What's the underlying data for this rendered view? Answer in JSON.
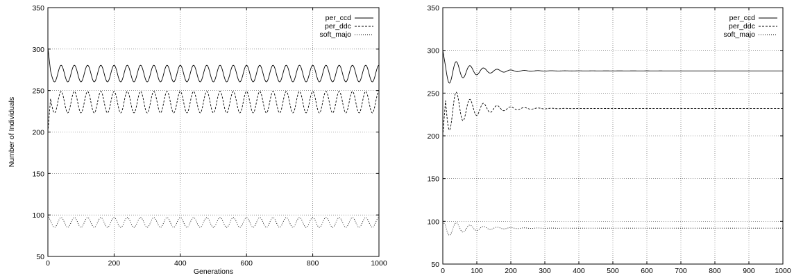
{
  "chart_data": [
    {
      "type": "line",
      "title": "",
      "xlabel": "Generations",
      "ylabel": "Number of Individuals",
      "xlim": [
        0,
        1000
      ],
      "ylim": [
        50,
        350
      ],
      "xticks": [
        0,
        200,
        400,
        600,
        800,
        1000
      ],
      "yticks": [
        50,
        100,
        150,
        200,
        250,
        300,
        350
      ],
      "x_grid": [
        200,
        400,
        600,
        800
      ],
      "y_grid": [
        100,
        150,
        200,
        250,
        300
      ],
      "grid": true,
      "legend_position": "top-right",
      "series": [
        {
          "name": "per_ccd",
          "style": "solid",
          "start": 302,
          "center": 270.5,
          "amplitude": 10,
          "decay": false,
          "period": 40
        },
        {
          "name": "per_ddc",
          "style": "dashed",
          "start": 200,
          "center": 236,
          "amplitude": 13,
          "decay": false,
          "period": 40
        },
        {
          "name": "soft_majo",
          "style": "dotted",
          "start": 100,
          "center": 91,
          "amplitude": 6,
          "decay": false,
          "period": 40
        }
      ]
    },
    {
      "type": "line",
      "title": "",
      "xlabel": "",
      "ylabel": "",
      "xlim": [
        0,
        1000
      ],
      "ylim": [
        50,
        350
      ],
      "xticks": [
        0,
        100,
        200,
        300,
        400,
        500,
        600,
        700,
        800,
        900,
        1000
      ],
      "yticks": [
        50,
        100,
        150,
        200,
        250,
        300,
        350
      ],
      "x_grid": [
        100,
        200,
        300,
        400,
        500,
        600,
        700,
        800,
        900
      ],
      "y_grid": [
        100,
        150,
        200,
        250,
        300
      ],
      "grid": true,
      "legend_position": "top-right",
      "series": [
        {
          "name": "per_ccd",
          "style": "solid",
          "start": 300,
          "center": 276,
          "amplitude": 17,
          "decay": true,
          "period": 40
        },
        {
          "name": "per_ddc",
          "style": "dashed",
          "start": 200,
          "center": 232,
          "amplitude": 30,
          "decay": true,
          "period": 40
        },
        {
          "name": "soft_majo",
          "style": "dotted",
          "start": 100,
          "center": 92,
          "amplitude": 10,
          "decay": true,
          "period": 40
        }
      ]
    }
  ]
}
